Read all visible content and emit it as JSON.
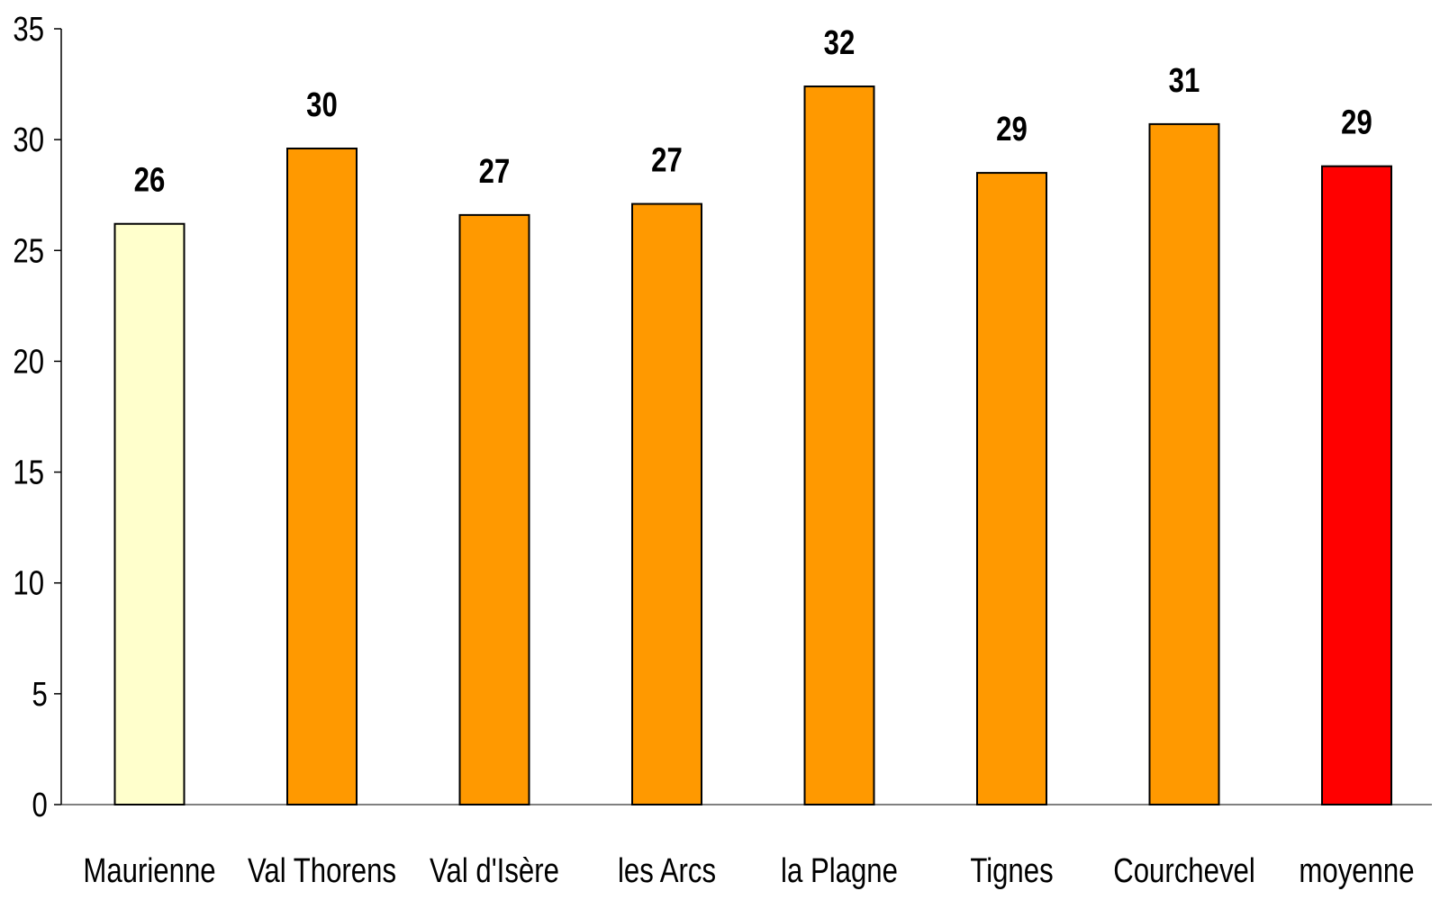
{
  "chart_data": {
    "type": "bar",
    "categories": [
      "Maurienne",
      "Val Thorens",
      "Val d'Isère",
      "les Arcs",
      "la Plagne",
      "Tignes",
      "Courchevel",
      "moyenne"
    ],
    "values": [
      26.2,
      29.6,
      26.6,
      27.1,
      32.4,
      28.5,
      30.7,
      28.8
    ],
    "data_labels": [
      "26",
      "30",
      "27",
      "27",
      "32",
      "29",
      "31",
      "29"
    ],
    "bar_colors": [
      "#FFFFCC",
      "#FF9900",
      "#FF9900",
      "#FF9900",
      "#FF9900",
      "#FF9900",
      "#FF9900",
      "#FF0000"
    ],
    "yticks": [
      "0",
      "5",
      "10",
      "15",
      "20",
      "25",
      "30",
      "35"
    ],
    "ylim": [
      0,
      35
    ],
    "grid": false,
    "legend": "none"
  }
}
